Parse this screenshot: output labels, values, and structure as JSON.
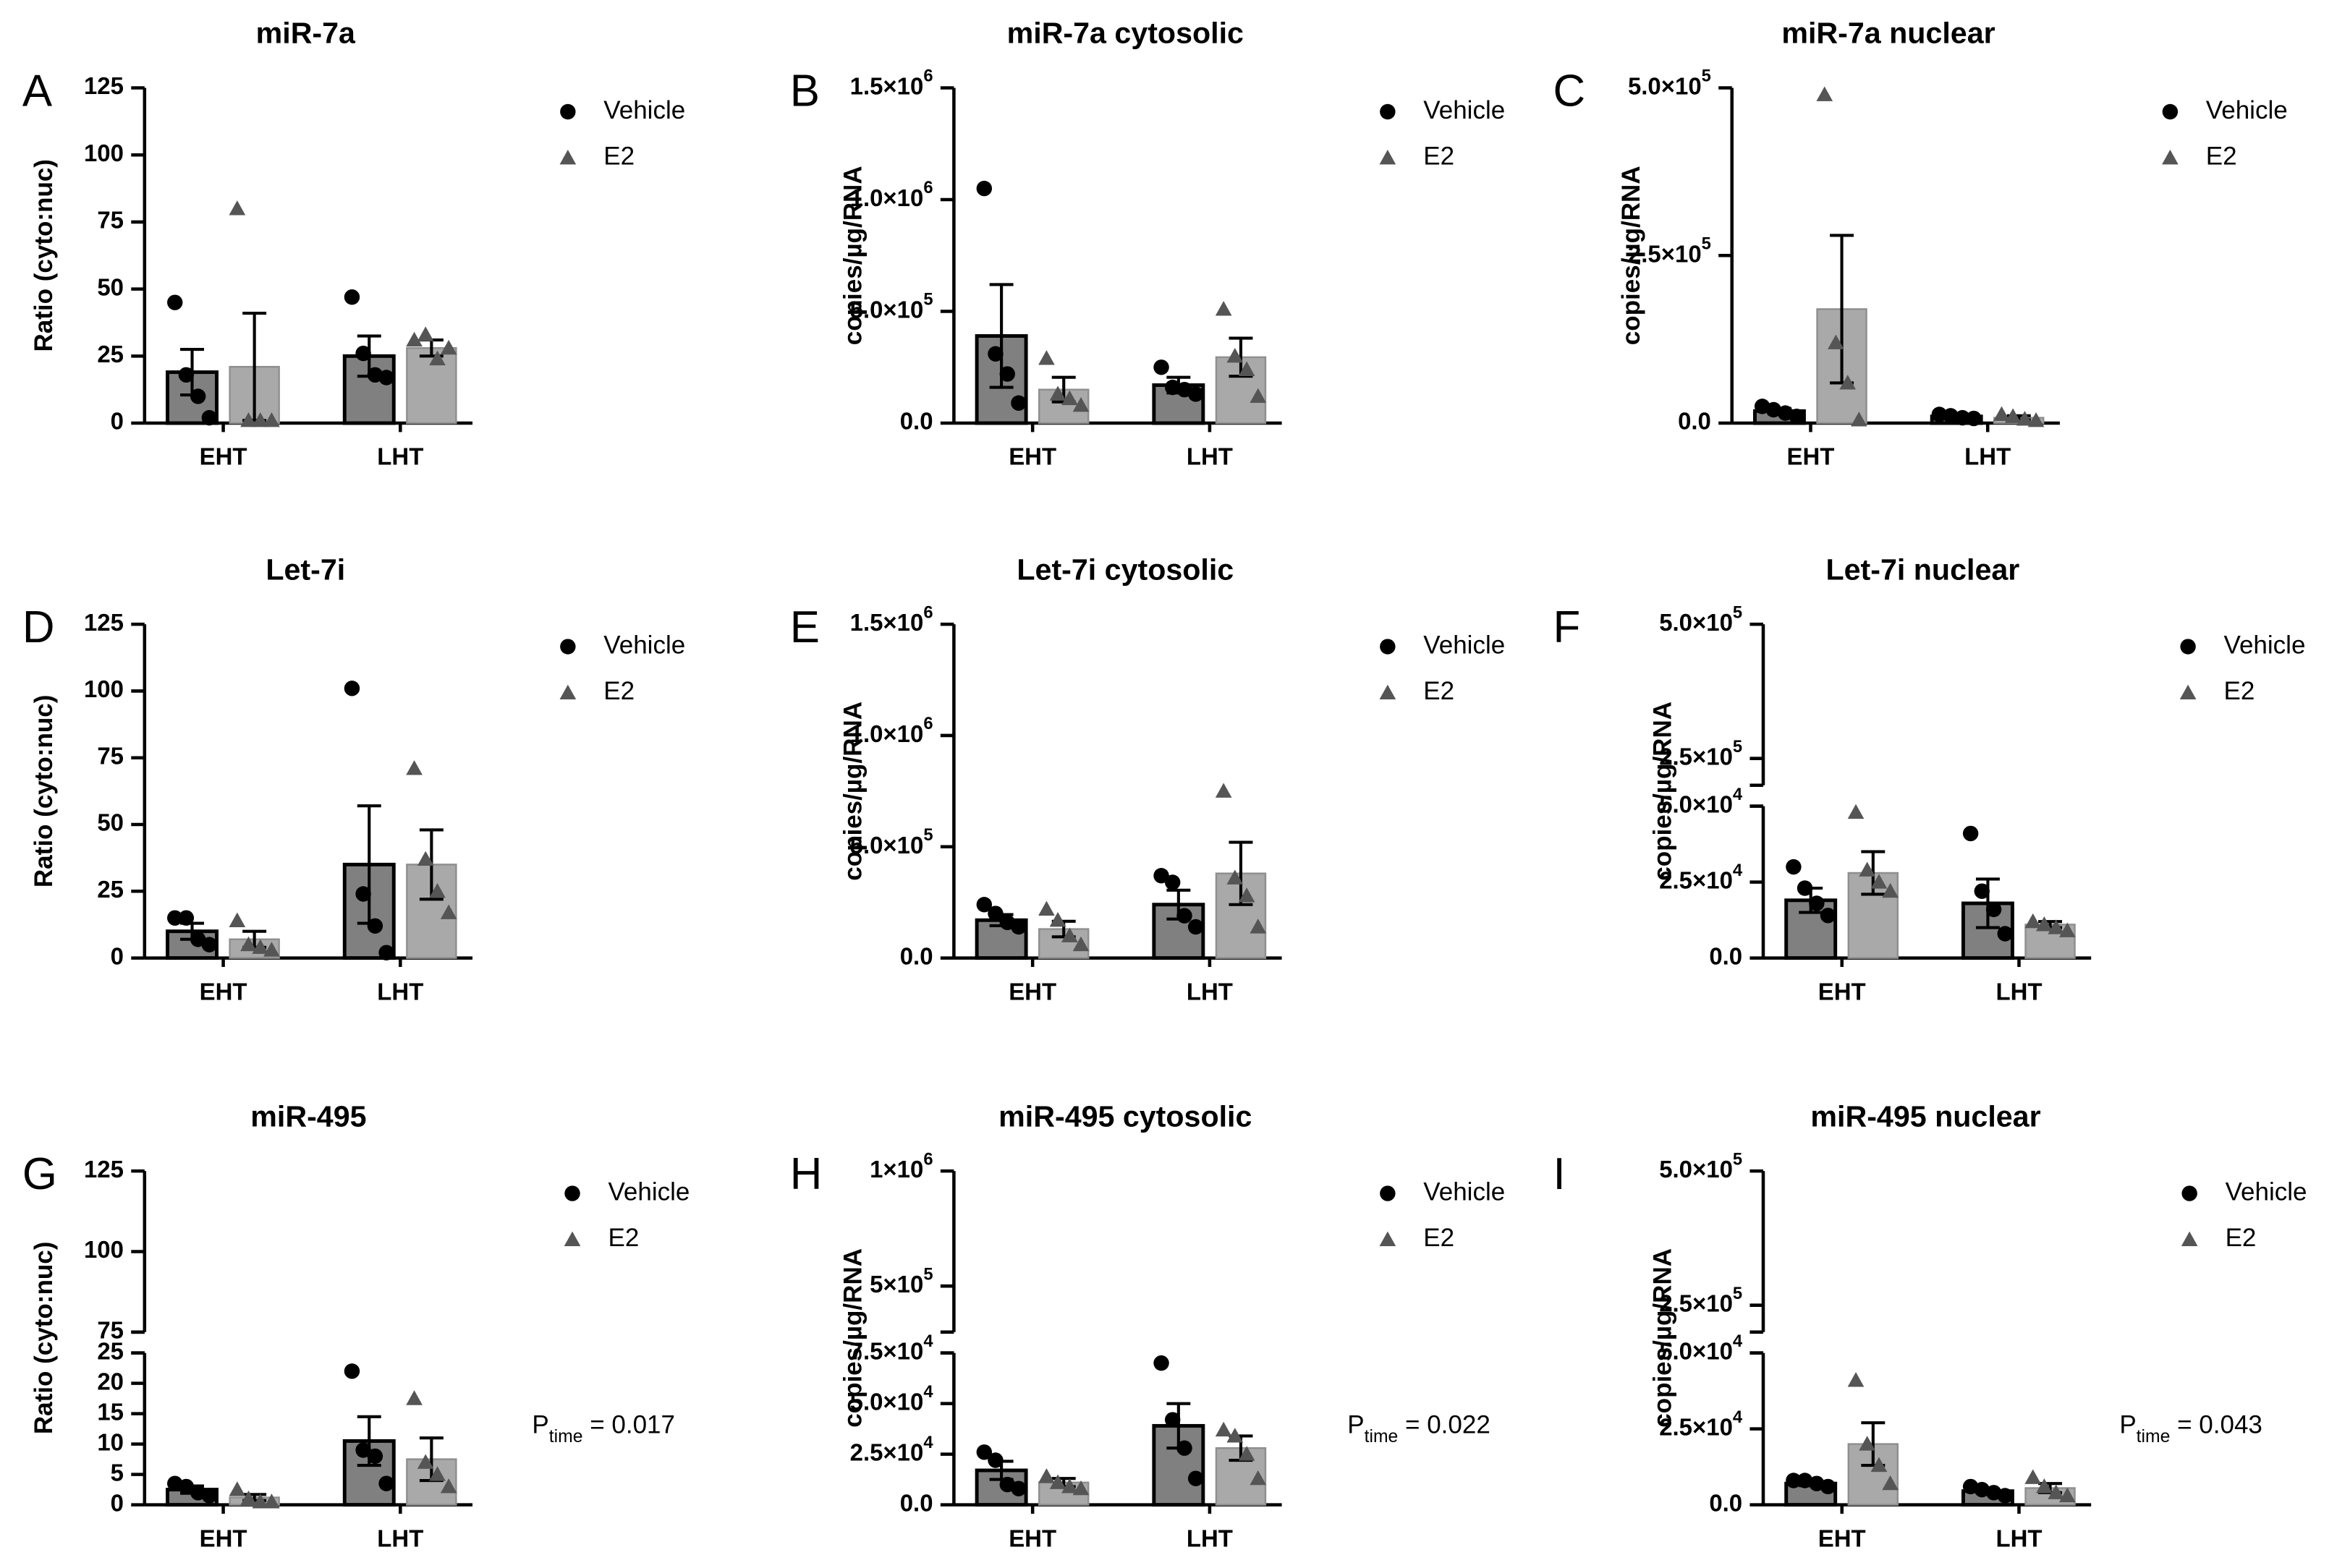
{
  "figure": {
    "legend_vehicle": "Vehicle",
    "legend_e2": "E2"
  },
  "chart_data": [
    {
      "panel": "A",
      "type": "bar",
      "title": "miR-7a",
      "ylabel": "Ratio (cyto:nuc)",
      "categories": [
        "EHT",
        "LHT"
      ],
      "ylim": [
        0,
        125
      ],
      "yticks": [
        0,
        25,
        50,
        75,
        100,
        125
      ],
      "yticklabels": [
        "0",
        "25",
        "50",
        "75",
        "100",
        "125"
      ],
      "series": [
        {
          "name": "Vehicle",
          "values": [
            19,
            25
          ],
          "sem": [
            8.5,
            7.5
          ],
          "points": [
            [
              45,
              18,
              10,
              2
            ],
            [
              47,
              26,
              18,
              17
            ]
          ]
        },
        {
          "name": "E2",
          "values": [
            21,
            28
          ],
          "sem": [
            20,
            3
          ],
          "points": [
            [
              80,
              1,
              1,
              1
            ],
            [
              31,
              33,
              24,
              28
            ]
          ]
        }
      ]
    },
    {
      "panel": "B",
      "type": "bar",
      "title": "miR-7a cytosolic",
      "ylabel": "copies/µg/RNA",
      "categories": [
        "EHT",
        "LHT"
      ],
      "ylim": [
        0,
        1500000
      ],
      "yticks": [
        0,
        500000,
        1000000,
        1500000
      ],
      "yticklabels": [
        "0.0",
        "5.0×10^5",
        "1.0×10^6",
        "1.5×10^6"
      ],
      "series": [
        {
          "name": "Vehicle",
          "values": [
            390000,
            170000
          ],
          "sem": [
            230000,
            35000
          ],
          "points": [
            [
              1050000,
              310000,
              220000,
              90000
            ],
            [
              250000,
              160000,
              150000,
              130000
            ]
          ]
        },
        {
          "name": "E2",
          "values": [
            150000,
            295000
          ],
          "sem": [
            55000,
            85000
          ],
          "points": [
            [
              290000,
              130000,
              110000,
              80000
            ],
            [
              510000,
              300000,
              240000,
              120000
            ]
          ]
        }
      ]
    },
    {
      "panel": "C",
      "type": "bar",
      "title": "miR-7a nuclear",
      "ylabel": "copies/µg/RNA",
      "categories": [
        "EHT",
        "LHT"
      ],
      "ylim": [
        0,
        500000
      ],
      "yticks": [
        0,
        250000,
        500000
      ],
      "yticklabels": [
        "0.0",
        "2.5×10^5",
        "5.0×10^5"
      ],
      "series": [
        {
          "name": "Vehicle",
          "values": [
            18000,
            10000
          ],
          "sem": [
            4000,
            2000
          ],
          "points": [
            [
              25000,
              20000,
              15000,
              10000
            ],
            [
              13000,
              11000,
              8000,
              7000
            ]
          ]
        },
        {
          "name": "E2",
          "values": [
            170000,
            8000
          ],
          "sem": [
            110000,
            3000
          ],
          "points": [
            [
              490000,
              120000,
              60000,
              5000
            ],
            [
              13000,
              10000,
              6000,
              4000
            ]
          ]
        }
      ]
    },
    {
      "panel": "D",
      "type": "bar",
      "title": "Let-7i",
      "ylabel": "Ratio (cyto:nuc)",
      "categories": [
        "EHT",
        "LHT"
      ],
      "ylim": [
        0,
        125
      ],
      "yticks": [
        0,
        25,
        50,
        75,
        100,
        125
      ],
      "yticklabels": [
        "0",
        "25",
        "50",
        "75",
        "100",
        "125"
      ],
      "series": [
        {
          "name": "Vehicle",
          "values": [
            10,
            35
          ],
          "sem": [
            3,
            22
          ],
          "points": [
            [
              15,
              15,
              7,
              5
            ],
            [
              101,
              24,
              12,
              2
            ]
          ]
        },
        {
          "name": "E2",
          "values": [
            7,
            35
          ],
          "sem": [
            3,
            13
          ],
          "points": [
            [
              14,
              5,
              4,
              3
            ],
            [
              71,
              37,
              25,
              17
            ]
          ]
        }
      ]
    },
    {
      "panel": "E",
      "type": "bar",
      "title": "Let-7i cytosolic",
      "ylabel": "copies/µg/RNA",
      "categories": [
        "EHT",
        "LHT"
      ],
      "ylim": [
        0,
        1500000
      ],
      "yticks": [
        0,
        500000,
        1000000,
        1500000
      ],
      "yticklabels": [
        "0.0",
        "5.0×10^5",
        "1.0×10^6",
        "1.5×10^6"
      ],
      "series": [
        {
          "name": "Vehicle",
          "values": [
            170000,
            240000
          ],
          "sem": [
            25000,
            65000
          ],
          "points": [
            [
              240000,
              200000,
              160000,
              140000
            ],
            [
              370000,
              340000,
              190000,
              140000
            ]
          ]
        },
        {
          "name": "E2",
          "values": [
            130000,
            380000
          ],
          "sem": [
            35000,
            140000
          ],
          "points": [
            [
              220000,
              170000,
              100000,
              60000
            ],
            [
              750000,
              360000,
              280000,
              140000
            ]
          ]
        }
      ]
    },
    {
      "panel": "F",
      "type": "bar",
      "title": "Let-7i nuclear",
      "ylabel": "copies/µg/RNA",
      "categories": [
        "EHT",
        "LHT"
      ],
      "ylim": [
        0,
        500000
      ],
      "axis_break": [
        50000,
        200000
      ],
      "yticks": [
        0,
        25000,
        50000,
        250000,
        500000
      ],
      "yticklabels": [
        "0.0",
        "2.5×10^4",
        "5.0×10^4",
        "2.5×10^5",
        "5.0×10^5"
      ],
      "series": [
        {
          "name": "Vehicle",
          "values": [
            19000,
            18000
          ],
          "sem": [
            4000,
            8000
          ],
          "points": [
            [
              30000,
              23000,
              18000,
              14000
            ],
            [
              41000,
              22000,
              16000,
              8000
            ]
          ]
        },
        {
          "name": "E2",
          "values": [
            28000,
            11000
          ],
          "sem": [
            7000,
            1000
          ],
          "points": [
            [
              48000,
              29000,
              25000,
              22000
            ],
            [
              12000,
              11000,
              10000,
              9000
            ]
          ]
        }
      ]
    },
    {
      "panel": "G",
      "type": "bar",
      "title": "miR-495",
      "ylabel": "Ratio (cyto:nuc)",
      "categories": [
        "EHT",
        "LHT"
      ],
      "ylim": [
        0,
        125
      ],
      "axis_break": [
        25,
        75
      ],
      "yticks": [
        0,
        5,
        10,
        15,
        20,
        25,
        75,
        100,
        125
      ],
      "yticklabels": [
        "0",
        "5",
        "10",
        "15",
        "20",
        "25",
        "75",
        "100",
        "125"
      ],
      "annotation": {
        "prefix": "P",
        "sub": "time",
        "suffix": " = 0.017"
      },
      "series": [
        {
          "name": "Vehicle",
          "values": [
            2.5,
            10.5
          ],
          "sem": [
            0.6,
            4
          ],
          "points": [
            [
              3.5,
              3,
              2,
              1.5
            ],
            [
              22,
              9,
              8,
              3.5
            ]
          ]
        },
        {
          "name": "E2",
          "values": [
            1.2,
            7.5
          ],
          "sem": [
            0.5,
            3.5
          ],
          "points": [
            [
              2.5,
              1,
              0.5,
              0.5
            ],
            [
              17.5,
              7,
              5,
              3
            ]
          ]
        }
      ]
    },
    {
      "panel": "H",
      "type": "bar",
      "title": "miR-495 cytosolic",
      "ylabel": "copies/µg/RNA",
      "categories": [
        "EHT",
        "LHT"
      ],
      "ylim": [
        0,
        1000000
      ],
      "axis_break": [
        75000,
        300000
      ],
      "yticks": [
        0,
        25000,
        50000,
        75000,
        500000,
        1000000
      ],
      "yticklabels": [
        "0.0",
        "2.5×10^4",
        "5.0×10^4",
        "7.5×10^4",
        "5×10^5",
        "1×10^6"
      ],
      "annotation": {
        "prefix": "P",
        "sub": "time",
        "suffix": " = 0.022"
      },
      "series": [
        {
          "name": "Vehicle",
          "values": [
            17000,
            39000
          ],
          "sem": [
            4500,
            11000
          ],
          "points": [
            [
              26000,
              22000,
              10000,
              8000
            ],
            [
              70000,
              42000,
              28000,
              13000
            ]
          ]
        },
        {
          "name": "E2",
          "values": [
            11000,
            28000
          ],
          "sem": [
            2000,
            6000
          ],
          "points": [
            [
              14000,
              11000,
              9000,
              8000
            ],
            [
              37000,
              34000,
              25000,
              13000
            ]
          ]
        }
      ]
    },
    {
      "panel": "I",
      "type": "bar",
      "title": "miR-495 nuclear",
      "ylabel": "copies/µg/RNA",
      "categories": [
        "EHT",
        "LHT"
      ],
      "ylim": [
        0,
        500000
      ],
      "axis_break": [
        50000,
        200000
      ],
      "yticks": [
        0,
        25000,
        50000,
        250000,
        500000
      ],
      "yticklabels": [
        "0.0",
        "2.5×10^4",
        "5.0×10^4",
        "2.5×10^5",
        "5.0×10^5"
      ],
      "annotation": {
        "prefix": "P",
        "sub": "time",
        "suffix": " = 0.043"
      },
      "series": [
        {
          "name": "Vehicle",
          "values": [
            7000,
            4500
          ],
          "sem": [
            700,
            700
          ],
          "points": [
            [
              8000,
              8000,
              7000,
              6000
            ],
            [
              6000,
              5000,
              4000,
              3000
            ]
          ]
        },
        {
          "name": "E2",
          "values": [
            20000,
            5500
          ],
          "sem": [
            7000,
            1500
          ],
          "points": [
            [
              41000,
              20000,
              13000,
              7000
            ],
            [
              9000,
              6000,
              4000,
              3000
            ]
          ]
        }
      ]
    }
  ]
}
